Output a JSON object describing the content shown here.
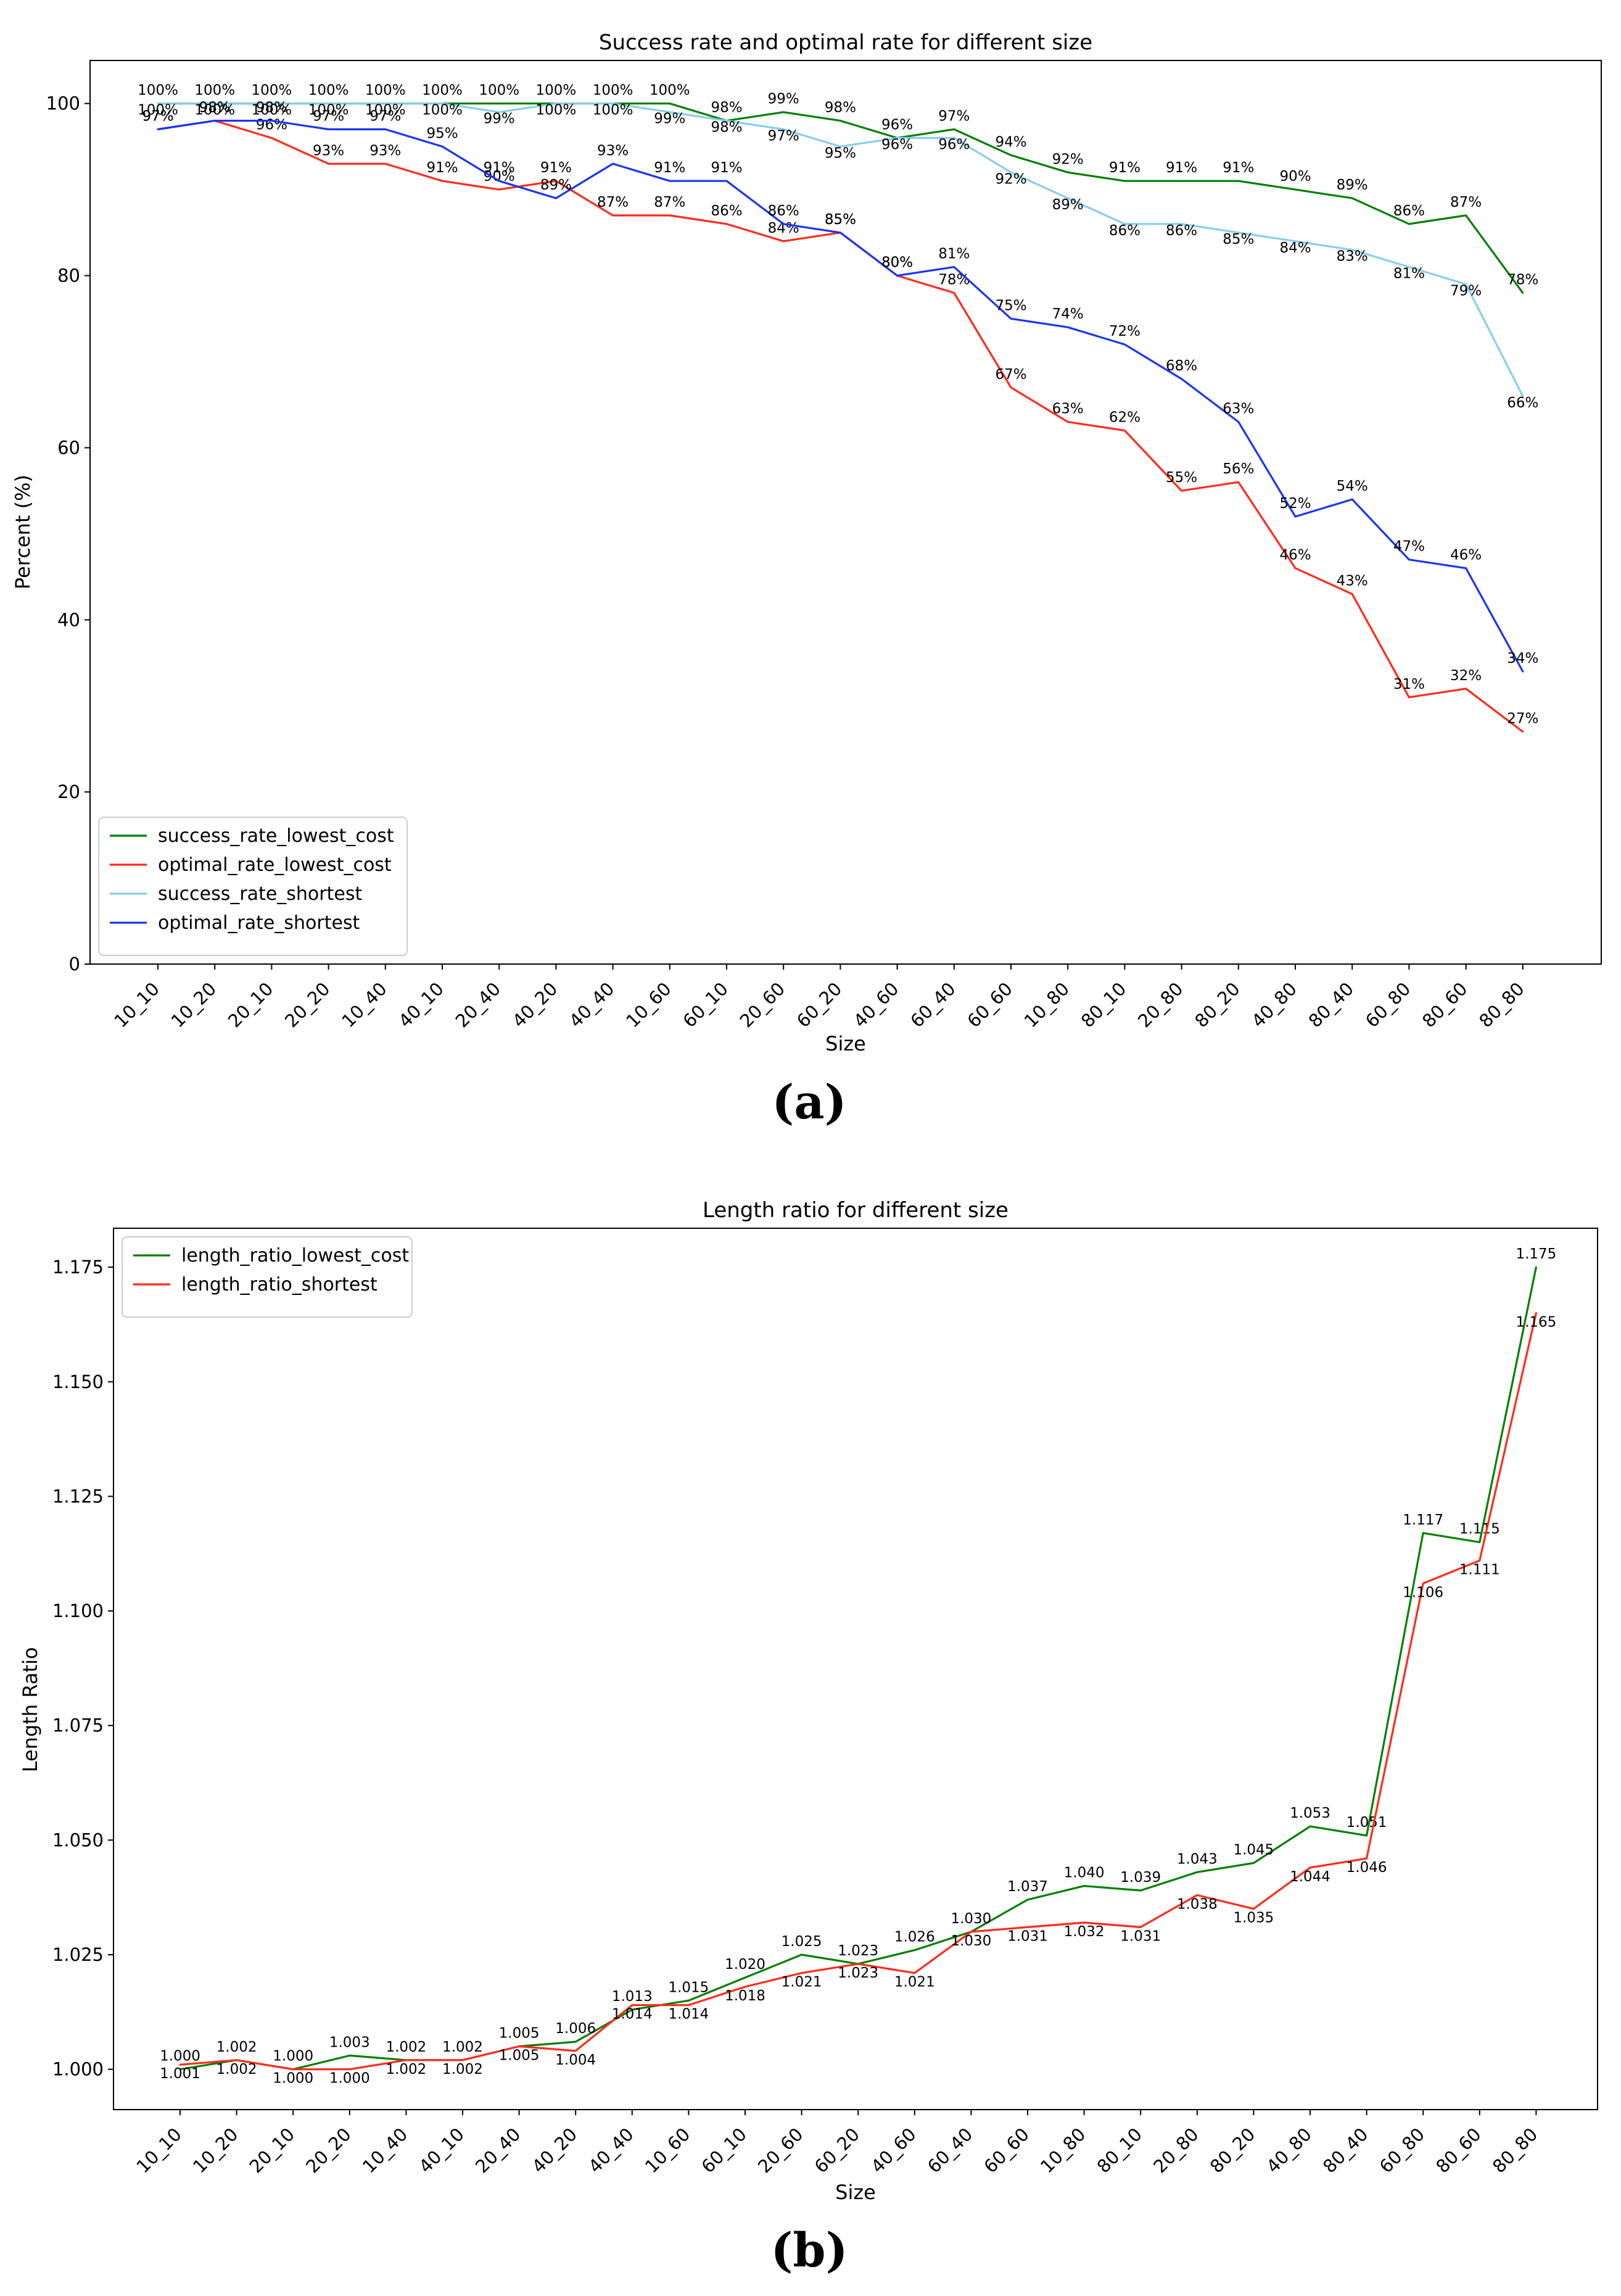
{
  "charts": [
    {
      "panel_label": "(a)",
      "chart_data": {
        "type": "line",
        "title": "Success rate and optimal rate for different size",
        "xlabel": "Size",
        "ylabel": "Percent (%)",
        "ylim": [
          0,
          105
        ],
        "yticks": [
          0,
          20,
          40,
          60,
          80,
          100
        ],
        "categories": [
          "10_10",
          "10_20",
          "20_10",
          "20_20",
          "10_40",
          "40_10",
          "20_40",
          "40_20",
          "40_40",
          "10_60",
          "60_10",
          "20_60",
          "60_20",
          "40_60",
          "60_40",
          "60_60",
          "10_80",
          "80_10",
          "20_80",
          "80_20",
          "40_80",
          "80_40",
          "60_80",
          "80_60",
          "80_80"
        ],
        "legend_position": "lower-left",
        "series": [
          {
            "name": "success_rate_lowest_cost",
            "color": "#008000",
            "label_suffix": "%",
            "values": [
              100,
              100,
              100,
              100,
              100,
              100,
              100,
              100,
              100,
              100,
              98,
              99,
              98,
              96,
              97,
              94,
              92,
              91,
              91,
              91,
              90,
              89,
              86,
              87,
              78
            ]
          },
          {
            "name": "optimal_rate_lowest_cost",
            "color": "#ff2a1a",
            "label_suffix": "%",
            "values": [
              97,
              98,
              96,
              93,
              93,
              91,
              90,
              91,
              87,
              87,
              86,
              84,
              85,
              80,
              78,
              67,
              63,
              62,
              55,
              56,
              46,
              43,
              31,
              32,
              27
            ]
          },
          {
            "name": "success_rate_shortest",
            "color": "#87ceeb",
            "label_suffix": "%",
            "values": [
              100,
              100,
              100,
              100,
              100,
              100,
              99,
              100,
              100,
              99,
              98,
              97,
              95,
              96,
              96,
              92,
              89,
              86,
              86,
              85,
              84,
              83,
              81,
              79,
              66
            ]
          },
          {
            "name": "optimal_rate_shortest",
            "color": "#1a35f0",
            "label_suffix": "%",
            "values": [
              97,
              98,
              98,
              97,
              97,
              95,
              91,
              89,
              93,
              91,
              91,
              86,
              85,
              80,
              81,
              75,
              74,
              72,
              68,
              63,
              52,
              54,
              47,
              46,
              34
            ]
          }
        ]
      }
    },
    {
      "panel_label": "(b)",
      "chart_data": {
        "type": "line",
        "title": "Length ratio for different size",
        "xlabel": "Size",
        "ylabel": "Length Ratio",
        "ylim": [
          0.9912,
          1.1835
        ],
        "yticks": [
          1.0,
          1.025,
          1.05,
          1.075,
          1.1,
          1.125,
          1.15,
          1.175
        ],
        "ytick_labels": [
          "1.000",
          "1.025",
          "1.050",
          "1.075",
          "1.100",
          "1.125",
          "1.150",
          "1.175"
        ],
        "categories": [
          "10_10",
          "10_20",
          "20_10",
          "20_20",
          "10_40",
          "40_10",
          "20_40",
          "40_20",
          "40_40",
          "10_60",
          "60_10",
          "20_60",
          "60_20",
          "40_60",
          "60_40",
          "60_60",
          "10_80",
          "80_10",
          "20_80",
          "80_20",
          "40_80",
          "80_40",
          "60_80",
          "80_60",
          "80_80"
        ],
        "legend_position": "upper-left",
        "series": [
          {
            "name": "length_ratio_lowest_cost",
            "color": "#008000",
            "values": [
              1.0,
              1.002,
              1.0,
              1.003,
              1.002,
              1.002,
              1.005,
              1.006,
              1.013,
              1.015,
              1.02,
              1.025,
              1.023,
              1.026,
              1.03,
              1.037,
              1.04,
              1.039,
              1.043,
              1.045,
              1.053,
              1.051,
              1.117,
              1.115,
              1.175
            ],
            "labels": [
              "1.000",
              "1.002",
              "1.000",
              "1.003",
              "1.002",
              "1.002",
              "1.005",
              "1.006",
              "1.013",
              "1.015",
              "1.020",
              "1.025",
              "1.023",
              "1.026",
              "1.030",
              "1.037",
              "1.040",
              "1.039",
              "1.043",
              "1.045",
              "1.053",
              "1.051",
              "1.117",
              "1.115",
              "1.175"
            ]
          },
          {
            "name": "length_ratio_shortest",
            "color": "#ff2a1a",
            "values": [
              1.001,
              1.002,
              1.0,
              1.0,
              1.002,
              1.002,
              1.005,
              1.004,
              1.014,
              1.014,
              1.018,
              1.021,
              1.023,
              1.021,
              1.03,
              1.031,
              1.032,
              1.031,
              1.038,
              1.035,
              1.044,
              1.046,
              1.106,
              1.111,
              1.165
            ],
            "labels": [
              "1.001",
              "1.002",
              "1.000",
              "1.000",
              "1.002",
              "1.002",
              "1.005",
              "1.004",
              "1.014",
              "1.014",
              "1.018",
              "1.021",
              "1.023",
              "1.021",
              "1.030",
              "1.031",
              "1.032",
              "1.031",
              "1.038",
              "1.035",
              "1.044",
              "1.046",
              "1.106",
              "1.111",
              "1.165"
            ]
          }
        ]
      }
    }
  ]
}
